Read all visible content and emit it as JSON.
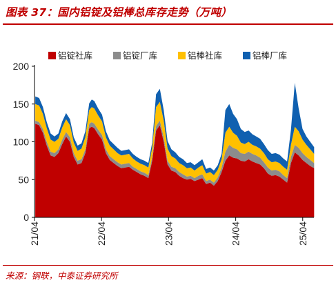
{
  "title": "图表 37：国内铝锭及铝棒总库存走势（万吨）",
  "source": "来源：钢联，中泰证券研究所",
  "colors": {
    "accent": "#c00000"
  },
  "chart_data": {
    "type": "area",
    "stacked": true,
    "title": "",
    "xlabel": "",
    "ylabel": "",
    "ylim": [
      0,
      200
    ],
    "xlim": [
      "2021-04",
      "2025-06"
    ],
    "yticks": [
      0,
      50,
      100,
      150,
      200
    ],
    "xticks": [
      "21/04",
      "22/04",
      "23/04",
      "24/04",
      "25/04"
    ],
    "grid": false,
    "legend": "top",
    "x": [
      "2021-04-05",
      "2021-04-26",
      "2021-05-17",
      "2021-06-07",
      "2021-06-28",
      "2021-07-19",
      "2021-08-09",
      "2021-08-30",
      "2021-09-20",
      "2021-10-11",
      "2021-11-01",
      "2021-11-22",
      "2021-12-13",
      "2022-01-03",
      "2022-01-24",
      "2022-02-07",
      "2022-02-21",
      "2022-03-14",
      "2022-04-04",
      "2022-04-25",
      "2022-05-16",
      "2022-06-06",
      "2022-06-27",
      "2022-07-18",
      "2022-08-08",
      "2022-08-29",
      "2022-09-19",
      "2022-10-10",
      "2022-10-31",
      "2022-11-21",
      "2022-12-12",
      "2023-01-02",
      "2023-01-23",
      "2023-02-13",
      "2023-03-06",
      "2023-03-27",
      "2023-04-17",
      "2023-05-08",
      "2023-05-29",
      "2023-06-19",
      "2023-07-10",
      "2023-07-31",
      "2023-08-21",
      "2023-09-11",
      "2023-10-02",
      "2023-10-23",
      "2023-11-13",
      "2023-12-04",
      "2023-12-25",
      "2024-01-15",
      "2024-02-05",
      "2024-02-26",
      "2024-03-18",
      "2024-04-08",
      "2024-04-29",
      "2024-05-20",
      "2024-06-10",
      "2024-07-01",
      "2024-07-22",
      "2024-08-12",
      "2024-09-02",
      "2024-09-23",
      "2024-10-14",
      "2024-11-04",
      "2024-11-25",
      "2024-12-16",
      "2025-01-06",
      "2025-01-27",
      "2025-02-17",
      "2025-03-10",
      "2025-03-31",
      "2025-04-21",
      "2025-05-12",
      "2025-06-02"
    ],
    "series": [
      {
        "name": "铝锭社库",
        "color": "#c00000",
        "values": [
          124,
          122,
          112,
          95,
          82,
          80,
          85,
          97,
          107,
          100,
          80,
          70,
          72,
          85,
          118,
          120,
          118,
          110,
          103,
          85,
          76,
          72,
          68,
          65,
          66,
          67,
          63,
          60,
          57,
          55,
          52,
          75,
          115,
          122,
          100,
          70,
          62,
          60,
          55,
          52,
          50,
          51,
          48,
          50,
          52,
          44,
          46,
          42,
          48,
          60,
          75,
          82,
          79,
          78,
          75,
          74,
          77,
          74,
          72,
          70,
          65,
          58,
          55,
          56,
          54,
          50,
          46,
          72,
          86,
          82,
          76,
          72,
          68,
          65
        ]
      },
      {
        "name": "铝锭厂库",
        "color": "#8c8c8c",
        "values": [
          4,
          4,
          5,
          5,
          5,
          5,
          5,
          6,
          6,
          6,
          5,
          5,
          5,
          5,
          6,
          6,
          6,
          6,
          6,
          5,
          5,
          5,
          5,
          5,
          5,
          5,
          4,
          4,
          4,
          4,
          4,
          5,
          6,
          6,
          6,
          5,
          5,
          5,
          5,
          5,
          4,
          4,
          4,
          5,
          5,
          4,
          4,
          4,
          5,
          6,
          12,
          14,
          13,
          12,
          10,
          10,
          10,
          10,
          10,
          9,
          8,
          8,
          7,
          7,
          7,
          6,
          6,
          8,
          10,
          10,
          9,
          8,
          8,
          7
        ]
      },
      {
        "name": "铝棒社库",
        "color": "#ffc000",
        "values": [
          22,
          22,
          20,
          18,
          16,
          15,
          14,
          16,
          17,
          16,
          14,
          13,
          14,
          16,
          18,
          20,
          20,
          19,
          18,
          16,
          14,
          13,
          12,
          12,
          12,
          12,
          11,
          10,
          10,
          10,
          10,
          12,
          25,
          25,
          22,
          16,
          14,
          13,
          12,
          12,
          11,
          11,
          10,
          11,
          12,
          10,
          10,
          10,
          10,
          11,
          25,
          24,
          20,
          18,
          14,
          13,
          13,
          12,
          12,
          12,
          12,
          11,
          11,
          11,
          11,
          11,
          11,
          16,
          24,
          22,
          18,
          16,
          14,
          12
        ]
      },
      {
        "name": "铝棒厂库",
        "color": "#1060b0",
        "values": [
          10,
          10,
          9,
          8,
          8,
          7,
          7,
          8,
          8,
          8,
          7,
          7,
          7,
          8,
          9,
          10,
          10,
          9,
          9,
          8,
          7,
          7,
          7,
          6,
          6,
          6,
          6,
          6,
          6,
          6,
          6,
          7,
          17,
          17,
          14,
          10,
          9,
          8,
          8,
          8,
          7,
          7,
          7,
          7,
          8,
          6,
          6,
          6,
          6,
          7,
          30,
          30,
          25,
          22,
          18,
          16,
          15,
          14,
          13,
          13,
          12,
          12,
          11,
          11,
          11,
          11,
          11,
          20,
          58,
          30,
          14,
          11,
          10,
          9
        ]
      }
    ]
  }
}
